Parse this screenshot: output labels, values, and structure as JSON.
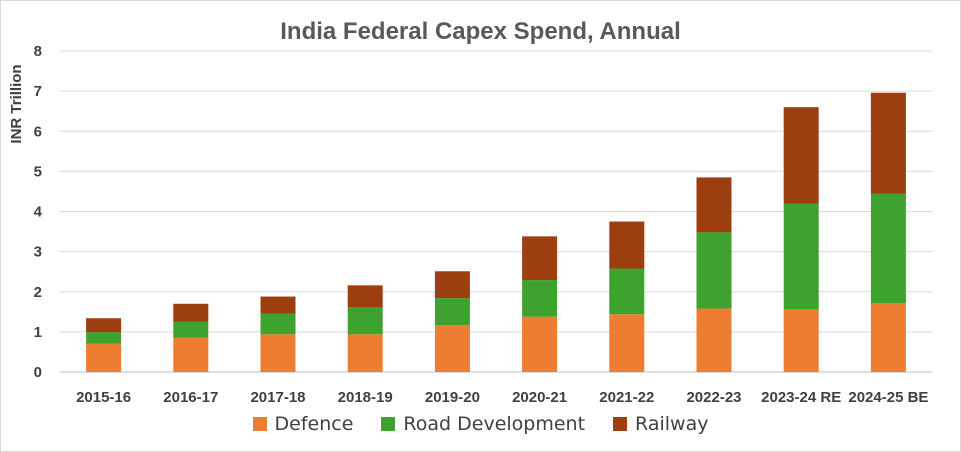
{
  "chart_data": {
    "type": "bar",
    "stacked": true,
    "title": "India Federal Capex Spend, Annual",
    "xlabel": "",
    "ylabel": "INR Trillion",
    "ylim": [
      0,
      8
    ],
    "yticks": [
      0,
      1,
      2,
      3,
      4,
      5,
      6,
      7,
      8
    ],
    "grid": true,
    "legend_position": "bottom",
    "categories": [
      "2015-16",
      "2016-17",
      "2017-18",
      "2018-19",
      "2019-20",
      "2020-21",
      "2021-22",
      "2022-23",
      "2023-24 RE",
      "2024-25 BE"
    ],
    "series": [
      {
        "name": "Defence",
        "color": "#ED7D31",
        "values": [
          0.71,
          0.86,
          0.94,
          0.94,
          1.17,
          1.38,
          1.44,
          1.58,
          1.57,
          1.72
        ]
      },
      {
        "name": "Road Development",
        "color": "#3DA22E",
        "values": [
          0.28,
          0.39,
          0.51,
          0.67,
          0.67,
          0.91,
          1.14,
          1.9,
          2.63,
          2.72
        ]
      },
      {
        "name": "Railway",
        "color": "#9C3E10",
        "values": [
          0.35,
          0.45,
          0.43,
          0.55,
          0.67,
          1.09,
          1.17,
          1.37,
          2.4,
          2.52
        ]
      }
    ]
  }
}
